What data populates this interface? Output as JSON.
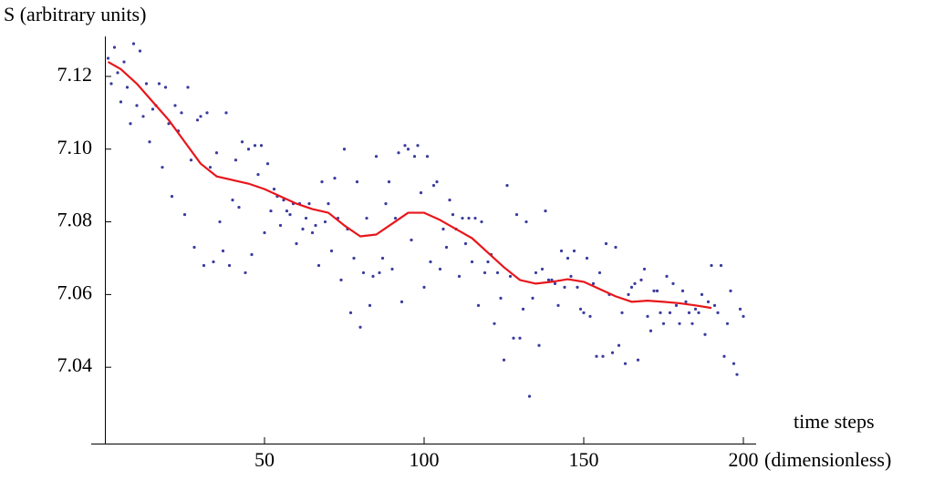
{
  "chart_data": {
    "type": "scatter",
    "y_label": "S (arbitrary units)",
    "x_label_lines": [
      "time steps",
      "(dimensionless)"
    ],
    "xlim": [
      0,
      204
    ],
    "ylim": [
      7.019,
      7.131
    ],
    "xticks": [
      50,
      100,
      150,
      200
    ],
    "yticks": [
      7.04,
      7.06,
      7.08,
      7.1,
      7.12
    ],
    "ytick_labels": [
      "7.04",
      "7.06",
      "7.08",
      "7.10",
      "7.12"
    ],
    "series": [
      {
        "type": "scatter",
        "color": "#3b3b9e",
        "x": [
          1,
          2,
          3,
          4,
          5,
          6,
          7,
          8,
          9,
          10,
          11,
          12,
          13,
          14,
          15,
          16,
          17,
          18,
          19,
          20,
          21,
          22,
          23,
          24,
          25,
          26,
          27,
          28,
          29,
          30,
          31,
          32,
          33,
          34,
          35,
          36,
          37,
          38,
          39,
          40,
          41,
          42,
          43,
          44,
          45,
          46,
          47,
          48,
          49,
          50,
          51,
          52,
          53,
          54,
          55,
          56,
          57,
          58,
          59,
          60,
          61,
          62,
          63,
          64,
          65,
          66,
          67,
          68,
          69,
          70,
          71,
          72,
          73,
          74,
          75,
          76,
          77,
          78,
          79,
          80,
          81,
          82,
          83,
          84,
          85,
          86,
          87,
          88,
          89,
          90,
          91,
          92,
          93,
          94,
          95,
          96,
          97,
          98,
          99,
          100,
          101,
          102,
          103,
          104,
          105,
          106,
          107,
          108,
          109,
          110,
          111,
          112,
          113,
          114,
          115,
          116,
          117,
          118,
          119,
          120,
          121,
          122,
          123,
          124,
          125,
          126,
          127,
          128,
          129,
          130,
          131,
          132,
          133,
          134,
          135,
          136,
          137,
          138,
          139,
          140,
          141,
          142,
          143,
          144,
          145,
          146,
          147,
          148,
          149,
          150,
          151,
          152,
          153,
          154,
          155,
          156,
          157,
          158,
          159,
          160,
          161,
          162,
          163,
          164,
          165,
          166,
          167,
          168,
          169,
          170,
          171,
          172,
          173,
          174,
          175,
          176,
          177,
          178,
          179,
          180,
          181,
          182,
          183,
          184,
          185,
          186,
          187,
          188,
          189,
          190,
          191,
          192,
          193,
          194,
          195,
          196,
          197,
          198,
          199,
          200
        ],
        "values": [
          7.125,
          7.118,
          7.128,
          7.121,
          7.113,
          7.124,
          7.117,
          7.107,
          7.129,
          7.112,
          7.127,
          7.109,
          7.118,
          7.102,
          7.111,
          7.112,
          7.118,
          7.095,
          7.117,
          7.107,
          7.087,
          7.112,
          7.105,
          7.11,
          7.082,
          7.117,
          7.097,
          7.073,
          7.108,
          7.109,
          7.068,
          7.11,
          7.095,
          7.069,
          7.099,
          7.08,
          7.072,
          7.11,
          7.068,
          7.086,
          7.097,
          7.084,
          7.102,
          7.066,
          7.1,
          7.071,
          7.101,
          7.093,
          7.101,
          7.077,
          7.096,
          7.083,
          7.089,
          7.087,
          7.079,
          7.086,
          7.083,
          7.082,
          7.085,
          7.074,
          7.085,
          7.078,
          7.081,
          7.085,
          7.077,
          7.079,
          7.068,
          7.091,
          7.08,
          7.085,
          7.072,
          7.092,
          7.081,
          7.064,
          7.1,
          7.078,
          7.055,
          7.07,
          7.091,
          7.051,
          7.066,
          7.081,
          7.057,
          7.065,
          7.098,
          7.066,
          7.07,
          7.085,
          7.091,
          7.067,
          7.081,
          7.099,
          7.058,
          7.101,
          7.1,
          7.075,
          7.098,
          7.101,
          7.088,
          7.062,
          7.098,
          7.069,
          7.09,
          7.091,
          7.067,
          7.078,
          7.073,
          7.086,
          7.082,
          7.078,
          7.065,
          7.081,
          7.074,
          7.081,
          7.069,
          7.081,
          7.057,
          7.08,
          7.066,
          7.069,
          7.071,
          7.052,
          7.066,
          7.059,
          7.042,
          7.09,
          7.065,
          7.048,
          7.082,
          7.048,
          7.056,
          7.08,
          7.032,
          7.059,
          7.066,
          7.046,
          7.067,
          7.083,
          7.064,
          7.064,
          7.063,
          7.057,
          7.072,
          7.062,
          7.07,
          7.065,
          7.072,
          7.062,
          7.056,
          7.055,
          7.07,
          7.054,
          7.063,
          7.043,
          7.066,
          7.043,
          7.074,
          7.06,
          7.044,
          7.073,
          7.046,
          7.055,
          7.041,
          7.06,
          7.062,
          7.063,
          7.042,
          7.064,
          7.067,
          7.054,
          7.05,
          7.061,
          7.061,
          7.055,
          7.052,
          7.065,
          7.055,
          7.063,
          7.057,
          7.052,
          7.061,
          7.058,
          7.055,
          7.052,
          7.056,
          7.055,
          7.06,
          7.049,
          7.058,
          7.068,
          7.057,
          7.055,
          7.068,
          7.043,
          7.052,
          7.061,
          7.041,
          7.038,
          7.056,
          7.054
        ]
      },
      {
        "type": "line",
        "color": "#e8161b",
        "x": [
          1,
          5,
          10,
          15,
          20,
          25,
          30,
          35,
          40,
          45,
          50,
          55,
          60,
          65,
          70,
          75,
          80,
          85,
          90,
          95,
          100,
          105,
          110,
          115,
          120,
          125,
          130,
          135,
          140,
          145,
          150,
          155,
          160,
          165,
          170,
          175,
          180,
          185,
          190
        ],
        "values": [
          7.124,
          7.122,
          7.118,
          7.113,
          7.108,
          7.102,
          7.096,
          7.0925,
          7.0915,
          7.0905,
          7.089,
          7.087,
          7.085,
          7.0835,
          7.0825,
          7.079,
          7.076,
          7.0765,
          7.0795,
          7.0825,
          7.0825,
          7.0805,
          7.078,
          7.0755,
          7.0715,
          7.0675,
          7.064,
          7.063,
          7.0635,
          7.0642,
          7.0635,
          7.0615,
          7.0595,
          7.058,
          7.0583,
          7.058,
          7.0576,
          7.057,
          7.0563
        ]
      }
    ]
  }
}
